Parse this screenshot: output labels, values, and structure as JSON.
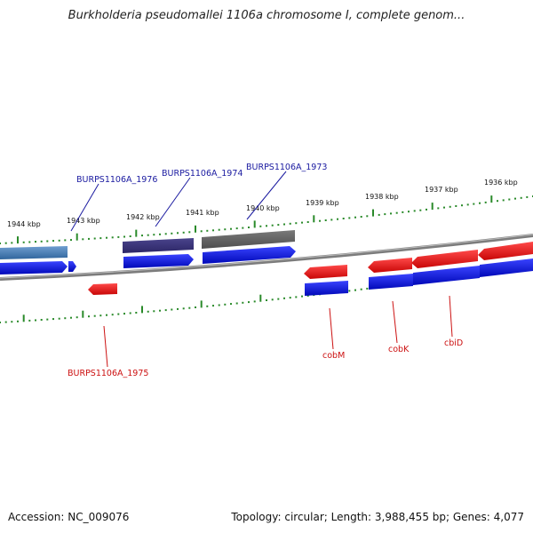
{
  "title": "Burkholderia pseudomallei 1106a chromosome I, complete genom...",
  "footer": {
    "accession": "Accession: NC_009076",
    "summary": "Topology: circular; Length: 3,988,455 bp; Genes: 4,077"
  },
  "scale_labels": [
    "1944 kbp",
    "1943 kbp",
    "1942 kbp",
    "1941 kbp",
    "1940 kbp",
    "1939 kbp",
    "1938 kbp",
    "1937 kbp",
    "1936 kbp"
  ],
  "gene_labels": {
    "b1976": "BURPS1106A_1976",
    "b1974": "BURPS1106A_1974",
    "b1973": "BURPS1106A_1973",
    "b1975": "BURPS1106A_1975",
    "cobM": "cobM",
    "cobK": "cobK",
    "cbiD": "cbiD"
  },
  "colors": {
    "forward_label": "#1a1aa0",
    "reverse_label": "#cc1111",
    "tick": "#2a8a2a",
    "backbone": "#808080",
    "blue_gene": "#0a14d8",
    "red_gene": "#e81818"
  }
}
